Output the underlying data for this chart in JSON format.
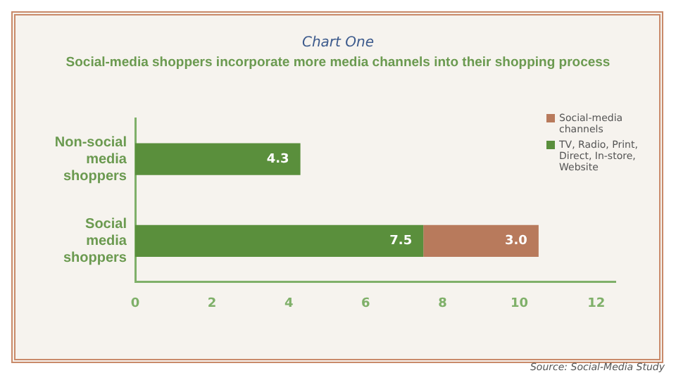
{
  "chart_data": {
    "type": "bar",
    "orientation": "horizontal",
    "stacked": true,
    "title": "Chart One",
    "subtitle": "Social-media shoppers incorporate more media channels into their shopping process",
    "categories": [
      "Non-social media shoppers",
      "Social media shoppers"
    ],
    "series": [
      {
        "name": "TV, Radio, Print, Direct, In-store, Website",
        "color": "#5a8f3c",
        "values": [
          4.3,
          7.5
        ],
        "value_labels": [
          "4.3",
          "7.5"
        ]
      },
      {
        "name": "Social-media channels",
        "color": "#b87a5c",
        "values": [
          null,
          3.0
        ],
        "value_labels": [
          null,
          "3.0"
        ]
      }
    ],
    "xlim": [
      0,
      12.5
    ],
    "xticks": [
      0,
      2,
      4,
      6,
      8,
      10,
      12
    ],
    "grid": false,
    "legend": "top right",
    "annotations": [
      "Source: Social-Media Study"
    ]
  }
}
